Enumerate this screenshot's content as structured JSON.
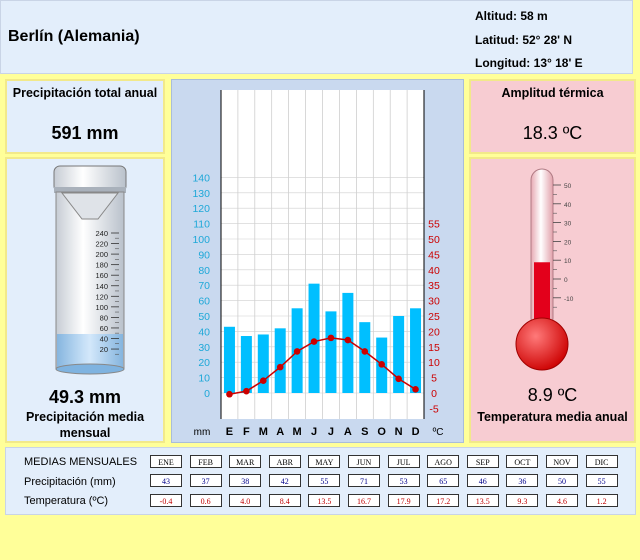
{
  "location": {
    "name": "Berlín (Alemania)",
    "altitude": "Altitud: 58 m",
    "latitude": "Latitud: 52° 28' N",
    "longitude": "Longitud:  13° 18' E"
  },
  "panels": {
    "precip_total_label": "Precipitación total anual",
    "precip_total_value": "591 mm",
    "precip_mean_value": "49.3 mm",
    "precip_mean_label": "Precipitación media mensual",
    "amplitude_label": "Amplitud térmica",
    "amplitude_value": "18.3 ºC",
    "temp_mean_value": "8.9 ºC",
    "temp_mean_label": "Temperatura media anual"
  },
  "colors": {
    "precip_bar": "#00bfff",
    "temp_line": "#cc0000",
    "temp_axis": "#cc0000",
    "precip_axis": "#1ea8d8"
  },
  "gauges": {
    "cylinder_ticks": [
      "240",
      "220",
      "200",
      "180",
      "160",
      "140",
      "120",
      "100",
      "80",
      "60",
      "40",
      "20"
    ],
    "cylinder_fill_mm": 49.3,
    "thermo_ticks": [
      "50",
      "40",
      "30",
      "20",
      "10",
      "0",
      "-10"
    ],
    "thermo_fill_c": 8.9
  },
  "chart_data": {
    "type": "bar",
    "categories": [
      "E",
      "F",
      "M",
      "A",
      "M",
      "J",
      "J",
      "A",
      "S",
      "O",
      "N",
      "D"
    ],
    "series": [
      {
        "values": [
          43,
          37,
          38,
          42,
          55,
          71,
          53,
          65,
          46,
          36,
          50,
          55
        ]
      },
      {
        "values": [
          -0.4,
          0.6,
          4.0,
          8.4,
          13.5,
          16.7,
          17.9,
          17.2,
          13.5,
          9.3,
          4.6,
          1.2
        ]
      }
    ],
    "xlabel_left": "mm",
    "xlabel_right": "ºC",
    "y_left_ticks": [
      "140",
      "130",
      "120",
      "110",
      "100",
      "90",
      "80",
      "70",
      "60",
      "50",
      "40",
      "30",
      "20",
      "10",
      "0"
    ],
    "y_right_ticks": [
      "55",
      "50",
      "45",
      "40",
      "35",
      "30",
      "25",
      "20",
      "15",
      "10",
      "5",
      "0",
      "-5"
    ],
    "ylim_left": [
      0,
      140
    ],
    "ylim_right": [
      -5,
      55
    ],
    "grid": true
  },
  "table": {
    "header_label": "MEDIAS MENSUALES",
    "precip_label": "Precipitación (mm)",
    "temp_label": "Temperatura (ºC)",
    "months": [
      "ENE",
      "FEB",
      "MAR",
      "ABR",
      "MAY",
      "JUN",
      "JUL",
      "AGO",
      "SEP",
      "OCT",
      "NOV",
      "DIC"
    ],
    "precip": [
      "43",
      "37",
      "38",
      "42",
      "55",
      "71",
      "53",
      "65",
      "46",
      "36",
      "50",
      "55"
    ],
    "temp": [
      "-0.4",
      "0.6",
      "4.0",
      "8.4",
      "13.5",
      "16.7",
      "17.9",
      "17.2",
      "13.5",
      "9.3",
      "4.6",
      "1.2"
    ]
  }
}
